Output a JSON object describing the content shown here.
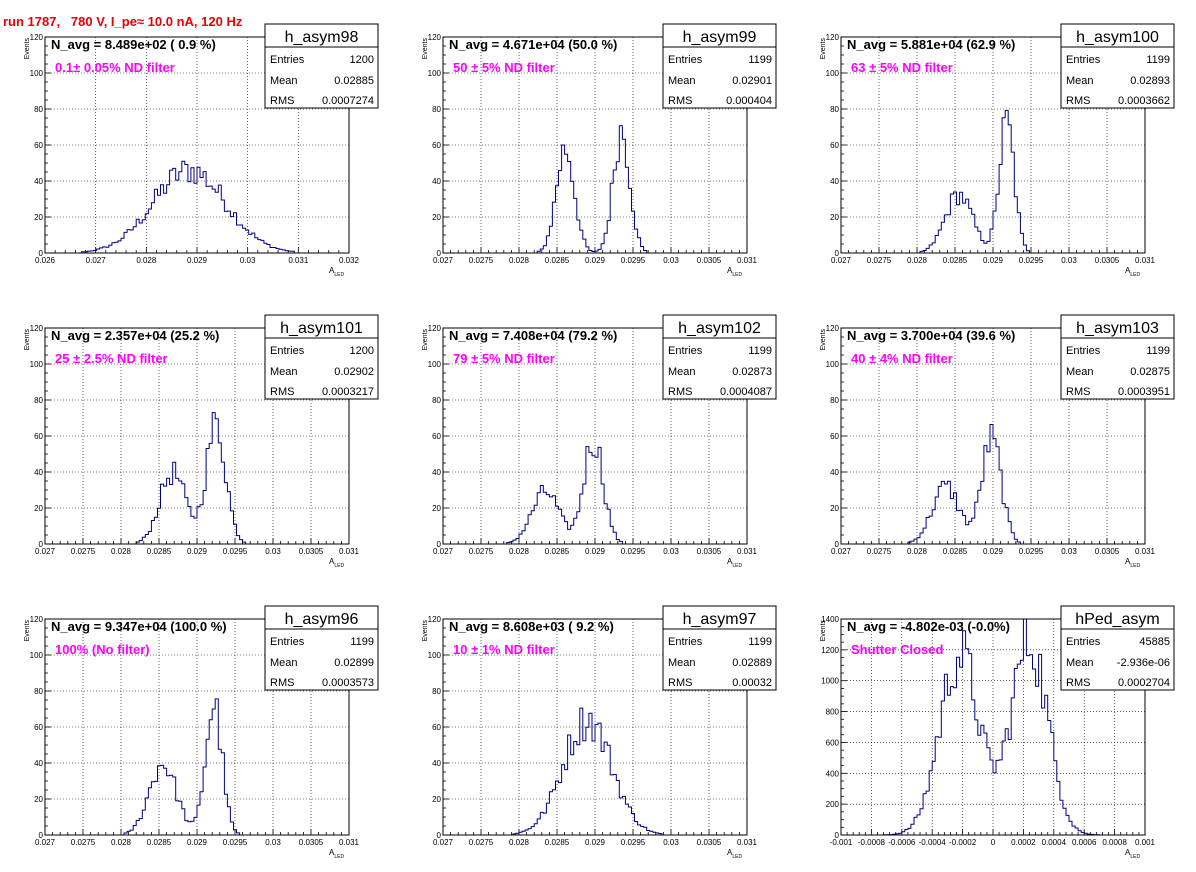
{
  "title": "run 1787,   780 V, I_pe≈ 10.0 nA, 120 Hz",
  "colors": {
    "title": "#e8000b",
    "annotation": "#ff00ff",
    "histogram": "#000080",
    "axis": "#000000",
    "grid": "#000000"
  },
  "common": {
    "ylabel": "Events",
    "xlabel_main": "A",
    "xlabel_sub": "LED"
  },
  "stat_labels": {
    "entries": "Entries",
    "mean": "Mean",
    "rms": "RMS"
  },
  "chart_data": [
    {
      "type": "bar",
      "name": "h_asym98",
      "title": "h_asym98",
      "navg": "N_avg = 8.489e+02 ( 0.9 %)",
      "annotation": "0.1± 0.05% ND filter",
      "stats": {
        "entries": "1200",
        "mean": "0.02885",
        "rms": "0.0007274"
      },
      "xlim": [
        0.026,
        0.032
      ],
      "ylim": [
        0,
        120
      ],
      "xticks": [
        0.026,
        0.027,
        0.028,
        0.029,
        0.03,
        0.031,
        0.032
      ],
      "xtick_labels": [
        "0.026",
        "0.027",
        "0.028",
        "0.029",
        "0.03",
        "0.031",
        "0.032"
      ],
      "yticks": [
        0,
        20,
        40,
        60,
        80,
        100,
        120
      ],
      "ytick_labels": [
        "0",
        "20",
        "40",
        "60",
        "80",
        "100",
        "120"
      ],
      "profile": {
        "centers": [
          0.02885
        ],
        "sigmas": [
          0.00072
        ],
        "weights": [
          1
        ],
        "peak": 46
      }
    },
    {
      "type": "bar",
      "name": "h_asym99",
      "title": "h_asym99",
      "navg": "N_avg = 4.671e+04 (50.0 %)",
      "annotation": "50 ± 5% ND filter",
      "stats": {
        "entries": "1199",
        "mean": "0.02901",
        "rms": "0.000404"
      },
      "xlim": [
        0.027,
        0.031
      ],
      "ylim": [
        0,
        120
      ],
      "xticks": [
        0.027,
        0.0275,
        0.028,
        0.0285,
        0.029,
        0.0295,
        0.03,
        0.0305,
        0.031
      ],
      "xtick_labels": [
        "0.027",
        "0.0275",
        "0.028",
        "0.0285",
        "0.029",
        "0.0295",
        "0.03",
        "0.0305",
        "0.031"
      ],
      "yticks": [
        0,
        20,
        40,
        60,
        80,
        100,
        120
      ],
      "ytick_labels": [
        "0",
        "20",
        "40",
        "60",
        "80",
        "100",
        "120"
      ],
      "profile": {
        "centers": [
          0.02861,
          0.02935
        ],
        "sigmas": [
          0.00012,
          0.00011
        ],
        "weights": [
          0.85,
          1
        ],
        "peak": 68
      }
    },
    {
      "type": "bar",
      "name": "h_asym100",
      "title": "h_asym100",
      "navg": "N_avg = 5.881e+04 (62.9 %)",
      "annotation": "63 ± 5% ND filter",
      "stats": {
        "entries": "1199",
        "mean": "0.02893",
        "rms": "0.0003662"
      },
      "xlim": [
        0.027,
        0.031
      ],
      "ylim": [
        0,
        120
      ],
      "xticks": [
        0.027,
        0.0275,
        0.028,
        0.0285,
        0.029,
        0.0295,
        0.03,
        0.0305,
        0.031
      ],
      "xtick_labels": [
        "0.027",
        "0.0275",
        "0.028",
        "0.0285",
        "0.029",
        "0.0295",
        "0.03",
        "0.0305",
        "0.031"
      ],
      "yticks": [
        0,
        20,
        40,
        60,
        80,
        100,
        120
      ],
      "ytick_labels": [
        "0",
        "20",
        "40",
        "60",
        "80",
        "100",
        "120"
      ],
      "profile": {
        "centers": [
          0.02855,
          0.02918
        ],
        "sigmas": [
          0.00018,
          0.0001
        ],
        "weights": [
          0.45,
          1
        ],
        "peak": 72
      }
    },
    {
      "type": "bar",
      "name": "h_asym101",
      "title": "h_asym101",
      "navg": "N_avg = 2.357e+04 (25.2 %)",
      "annotation": "25 ± 2.5% ND filter",
      "stats": {
        "entries": "1200",
        "mean": "0.02902",
        "rms": "0.0003217"
      },
      "xlim": [
        0.027,
        0.031
      ],
      "ylim": [
        0,
        120
      ],
      "xticks": [
        0.027,
        0.0275,
        0.028,
        0.0285,
        0.029,
        0.0295,
        0.03,
        0.0305,
        0.031
      ],
      "xtick_labels": [
        "0.027",
        "0.0275",
        "0.028",
        "0.0285",
        "0.029",
        "0.0295",
        "0.03",
        "0.0305",
        "0.031"
      ],
      "yticks": [
        0,
        20,
        40,
        60,
        80,
        100,
        120
      ],
      "ytick_labels": [
        "0",
        "20",
        "40",
        "60",
        "80",
        "100",
        "120"
      ],
      "profile": {
        "centers": [
          0.02868,
          0.02925
        ],
        "sigmas": [
          0.00017,
          0.00013
        ],
        "weights": [
          0.6,
          1
        ],
        "peak": 66
      }
    },
    {
      "type": "bar",
      "name": "h_asym102",
      "title": "h_asym102",
      "navg": "N_avg = 7.408e+04 (79.2 %)",
      "annotation": "79 ± 5% ND filter",
      "stats": {
        "entries": "1199",
        "mean": "0.02873",
        "rms": "0.0004087"
      },
      "xlim": [
        0.027,
        0.031
      ],
      "ylim": [
        0,
        120
      ],
      "xticks": [
        0.027,
        0.0275,
        0.028,
        0.0285,
        0.029,
        0.0295,
        0.03,
        0.0305,
        0.031
      ],
      "xtick_labels": [
        "0.027",
        "0.0275",
        "0.028",
        "0.0285",
        "0.029",
        "0.0295",
        "0.03",
        "0.0305",
        "0.031"
      ],
      "yticks": [
        0,
        20,
        40,
        60,
        80,
        100,
        120
      ],
      "ytick_labels": [
        "0",
        "20",
        "40",
        "60",
        "80",
        "100",
        "120"
      ],
      "profile": {
        "centers": [
          0.02835,
          0.02898
        ],
        "sigmas": [
          0.00018,
          0.00013
        ],
        "weights": [
          0.5,
          1
        ],
        "peak": 58
      }
    },
    {
      "type": "bar",
      "name": "h_asym103",
      "title": "h_asym103",
      "navg": "N_avg = 3.700e+04 (39.6 %)",
      "annotation": "40 ± 4% ND filter",
      "stats": {
        "entries": "1199",
        "mean": "0.02875",
        "rms": "0.0003951"
      },
      "xlim": [
        0.027,
        0.031
      ],
      "ylim": [
        0,
        120
      ],
      "xticks": [
        0.027,
        0.0275,
        0.028,
        0.0285,
        0.029,
        0.0295,
        0.03,
        0.0305,
        0.031
      ],
      "xtick_labels": [
        "0.027",
        "0.0275",
        "0.028",
        "0.0285",
        "0.029",
        "0.0295",
        "0.03",
        "0.0305",
        "0.031"
      ],
      "yticks": [
        0,
        20,
        40,
        60,
        80,
        100,
        120
      ],
      "ytick_labels": [
        "0",
        "20",
        "40",
        "60",
        "80",
        "100",
        "120"
      ],
      "profile": {
        "centers": [
          0.02838,
          0.02898
        ],
        "sigmas": [
          0.00018,
          0.00013
        ],
        "weights": [
          0.55,
          1
        ],
        "peak": 58
      }
    },
    {
      "type": "bar",
      "name": "h_asym96",
      "title": "h_asym96",
      "navg": "N_avg = 9.347e+04 (100.0 %)",
      "annotation": "100% (No filter)",
      "stats": {
        "entries": "1199",
        "mean": "0.02899",
        "rms": "0.0003573"
      },
      "xlim": [
        0.027,
        0.031
      ],
      "ylim": [
        0,
        120
      ],
      "xticks": [
        0.027,
        0.0275,
        0.028,
        0.0285,
        0.029,
        0.0295,
        0.03,
        0.0305,
        0.031
      ],
      "xtick_labels": [
        "0.027",
        "0.0275",
        "0.028",
        "0.0285",
        "0.029",
        "0.0295",
        "0.03",
        "0.0305",
        "0.031"
      ],
      "yticks": [
        0,
        20,
        40,
        60,
        80,
        100,
        120
      ],
      "ytick_labels": [
        "0",
        "20",
        "40",
        "60",
        "80",
        "100",
        "120"
      ],
      "profile": {
        "centers": [
          0.02855,
          0.02922
        ],
        "sigmas": [
          0.00018,
          0.00011
        ],
        "weights": [
          0.55,
          1
        ],
        "peak": 72
      }
    },
    {
      "type": "bar",
      "name": "h_asym97",
      "title": "h_asym97",
      "navg": "N_avg = 8.608e+03 ( 9.2 %)",
      "annotation": "10 ± 1% ND filter",
      "stats": {
        "entries": "1199",
        "mean": "0.02889",
        "rms": "0.00032"
      },
      "xlim": [
        0.027,
        0.031
      ],
      "ylim": [
        0,
        120
      ],
      "xticks": [
        0.027,
        0.0275,
        0.028,
        0.0285,
        0.029,
        0.0295,
        0.03,
        0.0305,
        0.031
      ],
      "xtick_labels": [
        "0.027",
        "0.0275",
        "0.028",
        "0.0285",
        "0.029",
        "0.0295",
        "0.03",
        "0.0305",
        "0.031"
      ],
      "yticks": [
        0,
        20,
        40,
        60,
        80,
        100,
        120
      ],
      "ytick_labels": [
        "0",
        "20",
        "40",
        "60",
        "80",
        "100",
        "120"
      ],
      "profile": {
        "centers": [
          0.0289
        ],
        "sigmas": [
          0.00032
        ],
        "weights": [
          1
        ],
        "peak": 64
      }
    },
    {
      "type": "bar",
      "name": "hPed_asym",
      "title": "hPed_asym",
      "navg": "N_avg = -4.802e-03 (-0.0%)",
      "annotation": "Shutter Closed",
      "stats": {
        "entries": "45885",
        "mean": "-2.936e-06",
        "rms": "0.0002704"
      },
      "xlim": [
        -0.001,
        0.001
      ],
      "ylim": [
        0,
        1400
      ],
      "xticks": [
        -0.001,
        -0.0008,
        -0.0006,
        -0.0004,
        -0.0002,
        0,
        0.0002,
        0.0004,
        0.0006,
        0.0008,
        0.001
      ],
      "xtick_labels": [
        "-0.001",
        "-0.0008",
        "-0.0006",
        "-0.0004",
        "-0.0002",
        "0",
        "0.0002",
        "0.0004",
        "0.0006",
        "0.0008",
        "0.001"
      ],
      "yticks": [
        0,
        200,
        400,
        600,
        800,
        1000,
        1200,
        1400
      ],
      "ytick_labels": [
        "0",
        "200",
        "400",
        "600",
        "800",
        "1000",
        "1200",
        "1400"
      ],
      "profile": {
        "centers": [
          -0.00022,
          0.00024
        ],
        "sigmas": [
          0.00013,
          0.00012
        ],
        "weights": [
          0.93,
          1
        ],
        "peak": 1260
      }
    }
  ]
}
